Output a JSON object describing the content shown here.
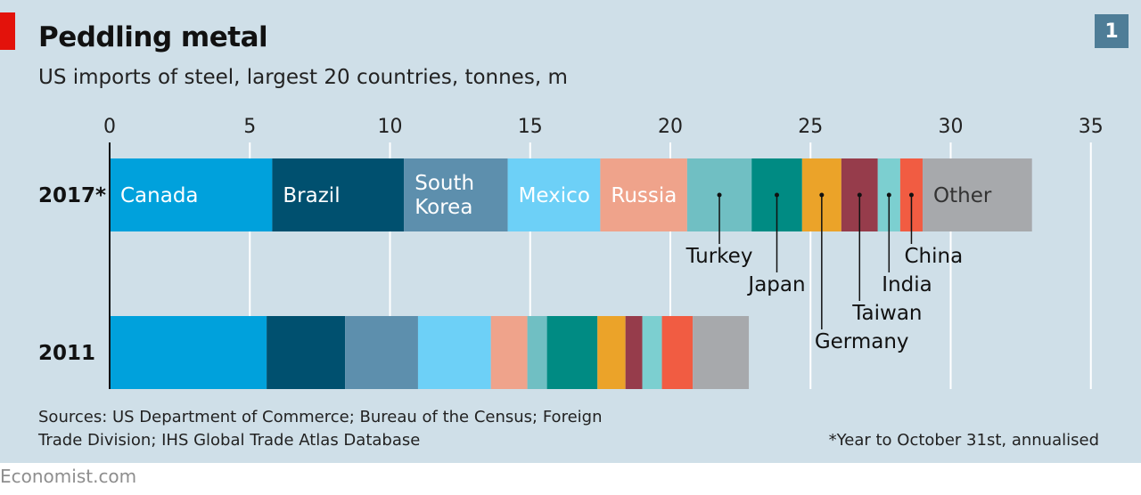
{
  "header": {
    "title": "Peddling metal",
    "subtitle": "US imports of steel, largest 20 countries, tonnes, m",
    "chart_number": "1"
  },
  "footer": {
    "source": "Sources: US Department of Commerce; Bureau of the Census; Foreign Trade Division; IHS Global Trade Atlas Database",
    "footnote": "*Year to October 31st, annualised",
    "brand": "Economist.com"
  },
  "chart_data": {
    "type": "bar",
    "orientation": "horizontal",
    "stacked": true,
    "categories": [
      "2017*",
      "2011"
    ],
    "xlim": [
      0,
      35
    ],
    "xticks": [
      0,
      5,
      10,
      15,
      20,
      25,
      30,
      35
    ],
    "grid": true,
    "series": [
      {
        "name": "Canada",
        "color": "#00a1dc",
        "values": [
          5.8,
          5.6
        ],
        "label": "inside"
      },
      {
        "name": "Brazil",
        "color": "#00506f",
        "values": [
          4.7,
          2.8
        ],
        "label": "inside"
      },
      {
        "name": "South Korea",
        "color": "#5d8fad",
        "values": [
          3.7,
          2.6
        ],
        "label": "inside-two-line"
      },
      {
        "name": "Mexico",
        "color": "#6dd0f7",
        "values": [
          3.3,
          2.6
        ],
        "label": "inside"
      },
      {
        "name": "Russia",
        "color": "#efa38b",
        "values": [
          3.1,
          1.3
        ],
        "label": "inside"
      },
      {
        "name": "Turkey",
        "color": "#70bfc3",
        "values": [
          2.3,
          0.7
        ],
        "label": "callout"
      },
      {
        "name": "Japan",
        "color": "#008b83",
        "values": [
          1.8,
          1.8
        ],
        "label": "callout"
      },
      {
        "name": "Germany",
        "color": "#eba329",
        "values": [
          1.4,
          1.0
        ],
        "label": "callout"
      },
      {
        "name": "Taiwan",
        "color": "#963c4b",
        "values": [
          1.3,
          0.6
        ],
        "label": "callout"
      },
      {
        "name": "India",
        "color": "#7ccfd0",
        "values": [
          0.8,
          0.7
        ],
        "label": "callout"
      },
      {
        "name": "China",
        "color": "#f15c42",
        "values": [
          0.8,
          1.1
        ],
        "label": "callout"
      },
      {
        "name": "Other",
        "color": "#a7a9ac",
        "values": [
          3.9,
          2.0
        ],
        "label": "inside-dark"
      }
    ]
  }
}
